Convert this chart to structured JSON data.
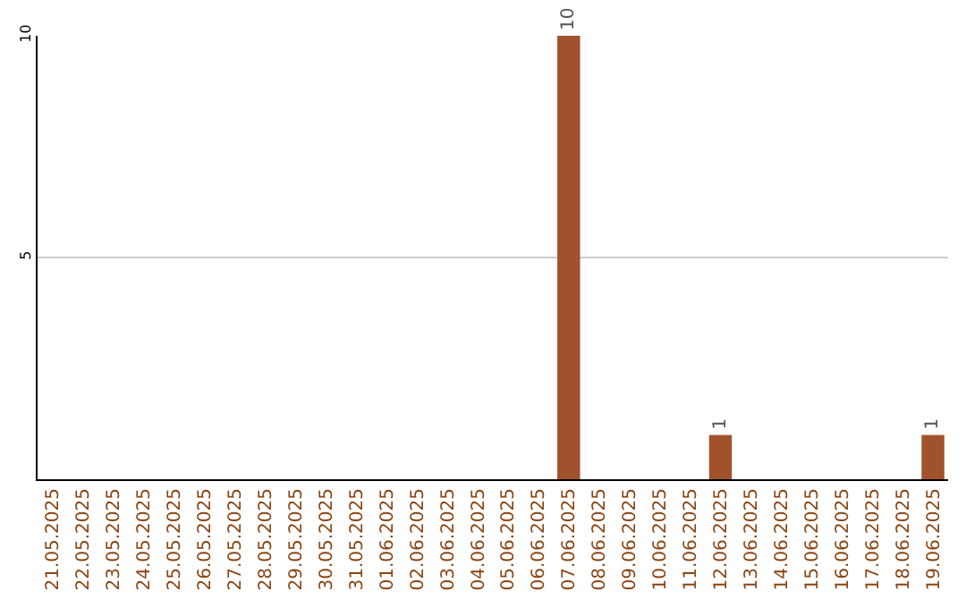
{
  "chart_data": {
    "type": "bar",
    "categories": [
      "21.05.2025",
      "22.05.2025",
      "23.05.2025",
      "24.05.2025",
      "25.05.2025",
      "26.05.2025",
      "27.05.2025",
      "28.05.2025",
      "29.05.2025",
      "30.05.2025",
      "31.05.2025",
      "01.06.2025",
      "02.06.2025",
      "03.06.2025",
      "04.06.2025",
      "05.06.2025",
      "06.06.2025",
      "07.06.2025",
      "08.06.2025",
      "09.06.2025",
      "10.06.2025",
      "11.06.2025",
      "12.06.2025",
      "13.06.2025",
      "14.06.2025",
      "15.06.2025",
      "16.06.2025",
      "17.06.2025",
      "18.06.2025",
      "19.06.2025"
    ],
    "values": [
      0,
      0,
      0,
      0,
      0,
      0,
      0,
      0,
      0,
      0,
      0,
      0,
      0,
      0,
      0,
      0,
      0,
      10,
      0,
      0,
      0,
      0,
      1,
      0,
      0,
      0,
      0,
      0,
      0,
      1
    ],
    "value_labels": [
      null,
      null,
      null,
      null,
      null,
      null,
      null,
      null,
      null,
      null,
      null,
      null,
      null,
      null,
      null,
      null,
      null,
      "10",
      null,
      null,
      null,
      null,
      "1",
      null,
      null,
      null,
      null,
      null,
      null,
      "1"
    ],
    "color": "#a0522d",
    "ylim": [
      0,
      10
    ],
    "yticks": [
      5,
      10
    ],
    "grid": "y"
  }
}
